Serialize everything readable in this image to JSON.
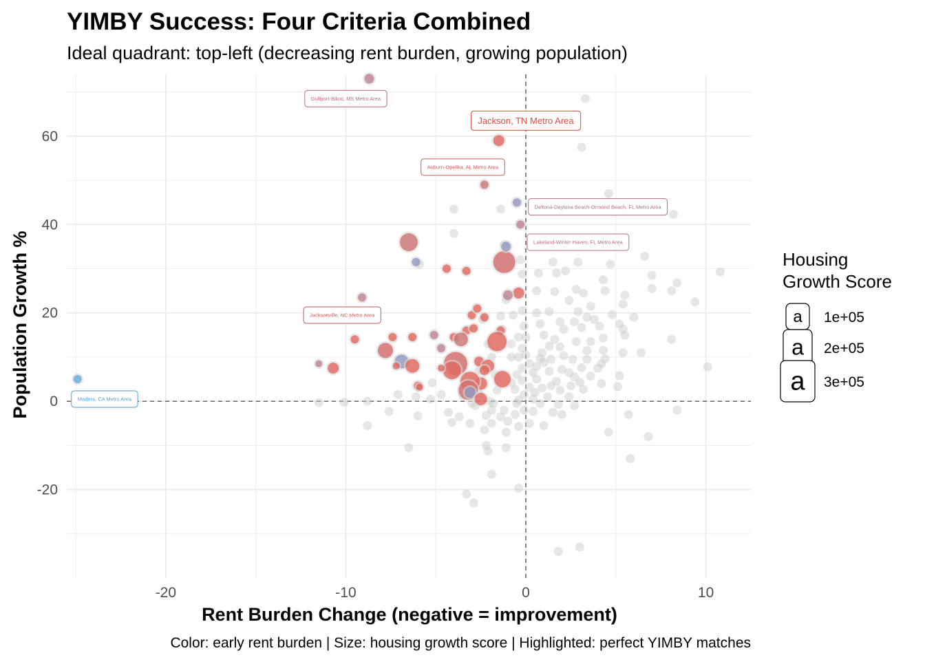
{
  "chart_data": {
    "type": "scatter",
    "title": "YIMBY Success: Four Criteria Combined",
    "subtitle": "Ideal quadrant: top-left (decreasing rent burden, growing population)",
    "xlabel": "Rent Burden Change (negative = improvement)",
    "ylabel": "Population Growth %",
    "caption": "Color: early rent burden | Size: housing growth score | Highlighted: perfect YIMBY matches",
    "xlim": [
      -25.5,
      12.5
    ],
    "ylim": [
      -40,
      74
    ],
    "x_ticks": [
      -20,
      -10,
      0,
      10
    ],
    "x_tick_labels": [
      "-20",
      "-10",
      "0",
      "10"
    ],
    "y_ticks": [
      -20,
      0,
      20,
      40,
      60
    ],
    "y_tick_labels": [
      "-20",
      "0",
      "20",
      "40",
      "60"
    ],
    "grid": true,
    "reference_lines": {
      "x": 0,
      "y": 0,
      "style": "dashed"
    },
    "legend": {
      "title_lines": [
        "Housing",
        "Growth Score"
      ],
      "placement": "right",
      "key_glyph": "a",
      "entries": [
        {
          "label": "1e+05",
          "value": 100000
        },
        {
          "label": "2e+05",
          "value": 200000
        },
        {
          "label": "3e+05",
          "value": 300000
        }
      ]
    },
    "colors": {
      "background_point": "#c8c8c8",
      "high_burden": "#e04a3f",
      "mid_burden": "#b56b7e",
      "low_burden": "#7f86b8",
      "lowest_burden": "#4c9ed9",
      "grid": "#ebebeb",
      "reference_line": "#6e6e6e",
      "title": "#000000",
      "axis_text": "#4d4d4d"
    },
    "labeled_points": [
      {
        "name": "Gulfport-Biloxi, MS Metro Area",
        "x": -8.7,
        "y": 73,
        "color": "#b56b7e",
        "label_x": -10.0,
        "label_y": 68.5,
        "size": "small"
      },
      {
        "name": "Jackson, TN Metro Area",
        "x": -1.5,
        "y": 59,
        "color": "#e04a3f",
        "label_x": 0.0,
        "label_y": 63.5,
        "size": "large"
      },
      {
        "name": "Auburn-Opelika, AL Metro Area",
        "x": -2.3,
        "y": 49,
        "color": "#c85a5a",
        "label_x": -3.5,
        "label_y": 53.0,
        "size": "small"
      },
      {
        "name": "Deltona-Daytona Beach-Ormond Beach, FL Metro Area",
        "x": -0.3,
        "y": 40,
        "color": "#b56b7e",
        "label_x": 4.0,
        "label_y": 44.0,
        "size": "small"
      },
      {
        "name": "Lakeland-Winter Haven, FL Metro Area",
        "x": -1.3,
        "y": 32,
        "color": "#b56b7e",
        "label_x": 2.9,
        "label_y": 36.0,
        "size": "small"
      },
      {
        "name": "Jacksonville, NC Metro Area",
        "x": -9.5,
        "y": 14,
        "color": "#c85a5a",
        "label_x": -10.2,
        "label_y": 19.5,
        "size": "small"
      },
      {
        "name": "Madera, CA Metro Area",
        "x": -24.9,
        "y": 5,
        "color": "#4c9ed9",
        "label_x": -23.4,
        "label_y": 0.5,
        "size": "small"
      }
    ],
    "highlighted_points": [
      {
        "x": -8.7,
        "y": 73,
        "size": 7,
        "color": "#b56b7e"
      },
      {
        "x": -1.5,
        "y": 59,
        "size": 8,
        "color": "#e04a3f"
      },
      {
        "x": -2.3,
        "y": 49,
        "size": 6,
        "color": "#c85a5a"
      },
      {
        "x": -0.5,
        "y": 45,
        "size": 6,
        "color": "#7f86b8"
      },
      {
        "x": -0.3,
        "y": 40,
        "size": 6,
        "color": "#b56b7e"
      },
      {
        "x": -6.5,
        "y": 36,
        "size": 13,
        "color": "#c85a5a"
      },
      {
        "x": -6.1,
        "y": 31.5,
        "size": 6,
        "color": "#7f86b8"
      },
      {
        "x": -1.2,
        "y": 31.5,
        "size": 16,
        "color": "#d25050"
      },
      {
        "x": -1.1,
        "y": 35,
        "size": 7,
        "color": "#7f86b8"
      },
      {
        "x": -4.4,
        "y": 30,
        "size": 6,
        "color": "#e04a3f"
      },
      {
        "x": -3.3,
        "y": 29.5,
        "size": 6,
        "color": "#e04a3f"
      },
      {
        "x": -0.4,
        "y": 24.5,
        "size": 8,
        "color": "#e04a3f"
      },
      {
        "x": -9.1,
        "y": 23.5,
        "size": 6,
        "color": "#b56b7e"
      },
      {
        "x": -1.0,
        "y": 24,
        "size": 7,
        "color": "#b56b7e"
      },
      {
        "x": -3.0,
        "y": 19.5,
        "size": 6,
        "color": "#e04a3f"
      },
      {
        "x": -2.7,
        "y": 21,
        "size": 6,
        "color": "#e04a3f"
      },
      {
        "x": -2.3,
        "y": 19,
        "size": 6,
        "color": "#e04a3f"
      },
      {
        "x": -3.3,
        "y": 16,
        "size": 6,
        "color": "#e04a3f"
      },
      {
        "x": -2.9,
        "y": 16.5,
        "size": 6,
        "color": "#e04a3f"
      },
      {
        "x": -1.4,
        "y": 16,
        "size": 6,
        "color": "#e04a3f"
      },
      {
        "x": -9.5,
        "y": 14,
        "size": 6,
        "color": "#e04a3f"
      },
      {
        "x": -7.4,
        "y": 14.5,
        "size": 6,
        "color": "#e04a3f"
      },
      {
        "x": -6.3,
        "y": 14.5,
        "size": 6,
        "color": "#e04a3f"
      },
      {
        "x": -5.1,
        "y": 15,
        "size": 6,
        "color": "#b56b7e"
      },
      {
        "x": -4.0,
        "y": 14.5,
        "size": 6,
        "color": "#e04a3f"
      },
      {
        "x": -3.6,
        "y": 14,
        "size": 10,
        "color": "#c85a5a"
      },
      {
        "x": -4.7,
        "y": 12,
        "size": 6,
        "color": "#b56b7e"
      },
      {
        "x": -1.6,
        "y": 13.5,
        "size": 14,
        "color": "#e04a3f"
      },
      {
        "x": -7.8,
        "y": 11.5,
        "size": 11,
        "color": "#d25050"
      },
      {
        "x": -6.9,
        "y": 9,
        "size": 10,
        "color": "#7f86b8"
      },
      {
        "x": -6.3,
        "y": 8,
        "size": 10,
        "color": "#e04a3f"
      },
      {
        "x": -3.9,
        "y": 8.5,
        "size": 17,
        "color": "#d25050"
      },
      {
        "x": -4.1,
        "y": 7,
        "size": 13,
        "color": "#e04a3f"
      },
      {
        "x": -2.6,
        "y": 9,
        "size": 7,
        "color": "#e04a3f"
      },
      {
        "x": -2.1,
        "y": 8,
        "size": 9,
        "color": "#e04a3f"
      },
      {
        "x": -2.3,
        "y": 7,
        "size": 7,
        "color": "#e04a3f"
      },
      {
        "x": -10.7,
        "y": 7.5,
        "size": 8,
        "color": "#e04a3f"
      },
      {
        "x": -11.5,
        "y": 8.5,
        "size": 5,
        "color": "#b56b7e"
      },
      {
        "x": -7.2,
        "y": 8,
        "size": 5,
        "color": "#e04a3f"
      },
      {
        "x": -4.7,
        "y": 7.5,
        "size": 5,
        "color": "#e04a3f"
      },
      {
        "x": -1.3,
        "y": 5,
        "size": 12,
        "color": "#e04a3f"
      },
      {
        "x": -2.5,
        "y": 4,
        "size": 9,
        "color": "#e04a3f"
      },
      {
        "x": -3.1,
        "y": 4.5,
        "size": 14,
        "color": "#e04a3f"
      },
      {
        "x": -3.2,
        "y": 2.5,
        "size": 14,
        "color": "#d25050"
      },
      {
        "x": -3.1,
        "y": 2,
        "size": 8,
        "color": "#7f86b8"
      },
      {
        "x": -2.5,
        "y": 0.5,
        "size": 9,
        "color": "#e04a3f"
      },
      {
        "x": -6.0,
        "y": 3.5,
        "size": 6,
        "color": "#e04a3f"
      },
      {
        "x": -5.9,
        "y": 3.2,
        "size": 5,
        "color": "#e04a3f"
      },
      {
        "x": -24.9,
        "y": 5,
        "size": 6,
        "color": "#4c9ed9"
      }
    ],
    "background_points": [
      [
        3.3,
        68.5
      ],
      [
        3.1,
        57.5
      ],
      [
        4.6,
        47
      ],
      [
        -4.0,
        43.5
      ],
      [
        -1.4,
        43.5
      ],
      [
        8.2,
        42.3
      ],
      [
        -4.0,
        38
      ],
      [
        0.3,
        36
      ],
      [
        -1.2,
        35.5
      ],
      [
        2.1,
        35.5
      ],
      [
        1.0,
        35.5
      ],
      [
        6.6,
        32.8
      ],
      [
        -0.3,
        32
      ],
      [
        1.5,
        31.5
      ],
      [
        2.9,
        31.5
      ],
      [
        4.7,
        31
      ],
      [
        -5.9,
        31
      ],
      [
        10.8,
        29.3
      ],
      [
        0.7,
        29
      ],
      [
        1.7,
        29
      ],
      [
        2.2,
        29.5
      ],
      [
        -0.2,
        28.8
      ],
      [
        7.0,
        28.5
      ],
      [
        8.4,
        26.8
      ],
      [
        4.3,
        27.5
      ],
      [
        2.8,
        25.3
      ],
      [
        0.6,
        25
      ],
      [
        1.6,
        24.8
      ],
      [
        3.2,
        24.5
      ],
      [
        4.4,
        25
      ],
      [
        5.5,
        24
      ],
      [
        7.0,
        25.5
      ],
      [
        8.1,
        25
      ],
      [
        -1.1,
        23
      ],
      [
        2.4,
        22.8
      ],
      [
        5.4,
        22
      ],
      [
        9.4,
        22.5
      ],
      [
        3.6,
        21.5
      ],
      [
        2.9,
        20.3
      ],
      [
        -0.2,
        20.5
      ],
      [
        0.6,
        20
      ],
      [
        1.3,
        20.3
      ],
      [
        4.8,
        19.6
      ],
      [
        6.0,
        19
      ],
      [
        3.4,
        19
      ],
      [
        -0.7,
        19.5
      ],
      [
        -1.4,
        19.3
      ],
      [
        3.8,
        18.5
      ],
      [
        2.7,
        18
      ],
      [
        5.2,
        17.5
      ],
      [
        1.9,
        18
      ],
      [
        -2.4,
        18.5
      ],
      [
        0.8,
        17.5
      ],
      [
        -0.1,
        17
      ],
      [
        4.1,
        17
      ],
      [
        5.4,
        16.3
      ],
      [
        2.1,
        16.3
      ],
      [
        3.1,
        16.7
      ],
      [
        5.5,
        15
      ],
      [
        1.0,
        15
      ],
      [
        0.0,
        14.5
      ],
      [
        -0.4,
        14.5
      ],
      [
        -1.3,
        16.3
      ],
      [
        8.1,
        14
      ],
      [
        4.3,
        14.3
      ],
      [
        1.6,
        14
      ],
      [
        2.8,
        13.5
      ],
      [
        3.6,
        13.5
      ],
      [
        -0.8,
        13
      ],
      [
        -2.1,
        13
      ],
      [
        1.9,
        12.3
      ],
      [
        1.3,
        12.5
      ],
      [
        -0.2,
        12
      ],
      [
        3.4,
        11.5
      ],
      [
        5.4,
        11
      ],
      [
        6.4,
        11
      ],
      [
        4.3,
        11.5
      ],
      [
        0.9,
        11
      ],
      [
        0.0,
        10.5
      ],
      [
        -0.4,
        10
      ],
      [
        2.1,
        10.3
      ],
      [
        3.4,
        9.5
      ],
      [
        4.4,
        9.6
      ],
      [
        0.8,
        9.7
      ],
      [
        -1.9,
        10
      ],
      [
        -0.8,
        10
      ],
      [
        1.4,
        9.5
      ],
      [
        2.6,
        9.5
      ],
      [
        4.2,
        8.5
      ],
      [
        1.0,
        8.8
      ],
      [
        0.2,
        8.5
      ],
      [
        0.6,
        7.9
      ],
      [
        -0.2,
        7.5
      ],
      [
        10.1,
        7.8
      ],
      [
        3.1,
        7.6
      ],
      [
        4.0,
        7.5
      ],
      [
        2.0,
        7.2
      ],
      [
        -2.6,
        7.0
      ],
      [
        0.4,
        6.5
      ],
      [
        1.3,
        6.8
      ],
      [
        2.4,
        6.5
      ],
      [
        -1.7,
        6.0
      ],
      [
        -0.5,
        6.0
      ],
      [
        2.7,
        5.5
      ],
      [
        3.6,
        5.7
      ],
      [
        5.2,
        5.8
      ],
      [
        0.6,
        5.0
      ],
      [
        -0.2,
        4.7
      ],
      [
        1.7,
        4.5
      ],
      [
        3.0,
        4.3
      ],
      [
        -0.8,
        4.2
      ],
      [
        4.2,
        4.0
      ],
      [
        -5.2,
        4.2
      ],
      [
        2.5,
        3.5
      ],
      [
        1.4,
        3.5
      ],
      [
        0.2,
        3.2
      ],
      [
        0.9,
        3.0
      ],
      [
        5.1,
        3.3
      ],
      [
        -0.6,
        2.7
      ],
      [
        -1.6,
        2.5
      ],
      [
        1.9,
        2.5
      ],
      [
        3.2,
        2.7
      ],
      [
        0.5,
        2.0
      ],
      [
        -0.1,
        1.5
      ],
      [
        -7.1,
        1.5
      ],
      [
        -4.7,
        1.5
      ],
      [
        -2.6,
        1.7
      ],
      [
        1.2,
        1.0
      ],
      [
        2.4,
        1.0
      ],
      [
        -3.5,
        1.3
      ],
      [
        -6.1,
        1.0
      ],
      [
        -5.3,
        0.5
      ],
      [
        0.4,
        0.5
      ],
      [
        -0.4,
        0.3
      ],
      [
        -2.0,
        0.0
      ],
      [
        -11.5,
        -0.3
      ],
      [
        -10.1,
        -0.2
      ],
      [
        -8.8,
        0.0
      ],
      [
        -1.8,
        -0.5
      ],
      [
        -0.5,
        -0.5
      ],
      [
        -3.0,
        -0.5
      ],
      [
        0.8,
        -0.5
      ],
      [
        1.8,
        -0.7
      ],
      [
        -2.8,
        -1.0
      ],
      [
        2.7,
        -1.0
      ],
      [
        -1.9,
        -2.0
      ],
      [
        -1.2,
        -2.0
      ],
      [
        -0.1,
        -2.0
      ],
      [
        0.4,
        -2.3
      ],
      [
        1.5,
        -2.5
      ],
      [
        -7.6,
        -2.3
      ],
      [
        -4.3,
        -2.5
      ],
      [
        -6.0,
        -3.3
      ],
      [
        -3.7,
        -3.5
      ],
      [
        -2.2,
        -3.2
      ],
      [
        -1.4,
        -3.5
      ],
      [
        -0.6,
        -3.0
      ],
      [
        2.0,
        -3.0
      ],
      [
        5.7,
        -3.0
      ],
      [
        8.4,
        -2.0
      ],
      [
        -4.1,
        -4.8
      ],
      [
        -3.1,
        -5.0
      ],
      [
        -1.9,
        -5.0
      ],
      [
        -1.0,
        -4.5
      ],
      [
        0.2,
        -5.0
      ],
      [
        1.0,
        -5.5
      ],
      [
        -8.8,
        -5.5
      ],
      [
        -0.4,
        -5.7
      ],
      [
        -2.3,
        -6.5
      ],
      [
        -1.1,
        -7.0
      ],
      [
        4.6,
        -7.0
      ],
      [
        6.8,
        -8.0
      ],
      [
        -2.2,
        -10.0
      ],
      [
        -1.1,
        -10.5
      ],
      [
        -6.5,
        -10.5
      ],
      [
        -2.1,
        -11.3
      ],
      [
        5.8,
        -13.0
      ],
      [
        -1.9,
        -16.5
      ],
      [
        -0.4,
        -19.7
      ],
      [
        -3.3,
        -21.0
      ],
      [
        -2.9,
        -23.0
      ],
      [
        3.0,
        -33.0
      ],
      [
        1.8,
        -34.0
      ]
    ]
  }
}
